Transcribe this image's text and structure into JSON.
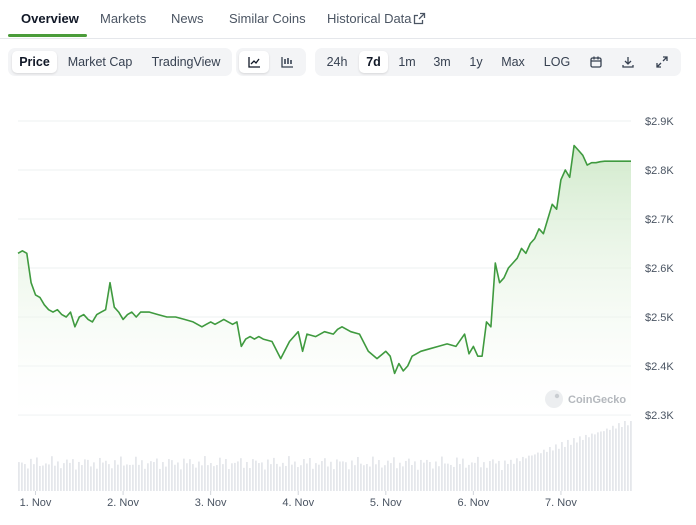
{
  "nav": {
    "tabs": [
      "Overview",
      "Markets",
      "News",
      "Similar Coins",
      "Historical Data"
    ],
    "active": "Overview"
  },
  "toolbar": {
    "view_tabs": [
      "Price",
      "Market Cap",
      "TradingView"
    ],
    "active_view": "Price",
    "chart_style_icons": [
      "line-chart-icon",
      "candlestick-chart-icon"
    ],
    "active_style": "line-chart-icon",
    "ranges": [
      "24h",
      "7d",
      "1m",
      "3m",
      "1y",
      "Max",
      "LOG"
    ],
    "active_range": "7d",
    "action_icons": [
      "calendar-icon",
      "download-icon",
      "expand-icon"
    ]
  },
  "watermark": "CoinGecko",
  "colors": {
    "accent": "#4b9c3a",
    "line": "#3f9a3f",
    "area_top": "#d6ecd2",
    "volume": "#e5e7eb"
  },
  "chart_data": {
    "type": "line",
    "title": "",
    "xlabel": "",
    "ylabel": "",
    "ylim": [
      2300,
      2900
    ],
    "y_ticks": [
      "$2.9K",
      "$2.8K",
      "$2.7K",
      "$2.6K",
      "$2.5K",
      "$2.4K",
      "$2.3K"
    ],
    "y_tick_values": [
      2900,
      2800,
      2700,
      2600,
      2500,
      2400,
      2300
    ],
    "x_ticks": [
      "1. Nov",
      "2. Nov",
      "3. Nov",
      "4. Nov",
      "5. Nov",
      "6. Nov",
      "7. Nov"
    ],
    "x_range_days": [
      0.8,
      7.8
    ],
    "grid": true,
    "series": [
      {
        "x": [
          0.8,
          0.85,
          0.9,
          0.95,
          1.0,
          1.05,
          1.1,
          1.15,
          1.2,
          1.25,
          1.3,
          1.35,
          1.4,
          1.45,
          1.5,
          1.55,
          1.6,
          1.65,
          1.7,
          1.75,
          1.8,
          1.85,
          1.9,
          1.95,
          2.0,
          2.05,
          2.1,
          2.15,
          2.2,
          2.3,
          2.4,
          2.5,
          2.6,
          2.7,
          2.8,
          2.9,
          2.95,
          3.0,
          3.05,
          3.1,
          3.15,
          3.2,
          3.25,
          3.3,
          3.35,
          3.4,
          3.45,
          3.5,
          3.55,
          3.6,
          3.7,
          3.8,
          3.9,
          4.0,
          4.05,
          4.1,
          4.2,
          4.3,
          4.4,
          4.45,
          4.5,
          4.6,
          4.7,
          4.8,
          4.9,
          5.0,
          5.05,
          5.1,
          5.15,
          5.2,
          5.25,
          5.3,
          5.35,
          5.4,
          5.5,
          5.6,
          5.7,
          5.8,
          5.9,
          5.95,
          6.0,
          6.05,
          6.1,
          6.15,
          6.2,
          6.25,
          6.3,
          6.35,
          6.4,
          6.45,
          6.5,
          6.55,
          6.6,
          6.65,
          6.7,
          6.75,
          6.8,
          6.85,
          6.9,
          6.95,
          7.0,
          7.05,
          7.1,
          7.15,
          7.2,
          7.25,
          7.3,
          7.35,
          7.4,
          7.45,
          7.5,
          7.55,
          7.6,
          7.65,
          7.7,
          7.75,
          7.8
        ],
        "y": [
          2630,
          2635,
          2630,
          2570,
          2545,
          2540,
          2525,
          2515,
          2510,
          2515,
          2505,
          2500,
          2510,
          2480,
          2500,
          2505,
          2495,
          2490,
          2505,
          2510,
          2515,
          2570,
          2520,
          2510,
          2495,
          2505,
          2510,
          2500,
          2510,
          2510,
          2505,
          2500,
          2500,
          2495,
          2490,
          2480,
          2485,
          2490,
          2485,
          2490,
          2495,
          2490,
          2485,
          2490,
          2440,
          2455,
          2460,
          2455,
          2460,
          2455,
          2450,
          2415,
          2450,
          2470,
          2430,
          2465,
          2460,
          2470,
          2465,
          2475,
          2480,
          2470,
          2465,
          2430,
          2415,
          2430,
          2420,
          2385,
          2405,
          2390,
          2400,
          2420,
          2425,
          2430,
          2435,
          2440,
          2445,
          2440,
          2465,
          2425,
          2440,
          2420,
          2420,
          2490,
          2480,
          2610,
          2570,
          2580,
          2600,
          2610,
          2620,
          2640,
          2630,
          2650,
          2660,
          2680,
          2670,
          2700,
          2730,
          2720,
          2780,
          2800,
          2785,
          2850,
          2840,
          2830,
          2810,
          2815,
          2815,
          2817,
          2818,
          2818,
          2818,
          2818,
          2818,
          2818,
          2818
        ],
        "note_points": "sampled price path"
      }
    ]
  }
}
